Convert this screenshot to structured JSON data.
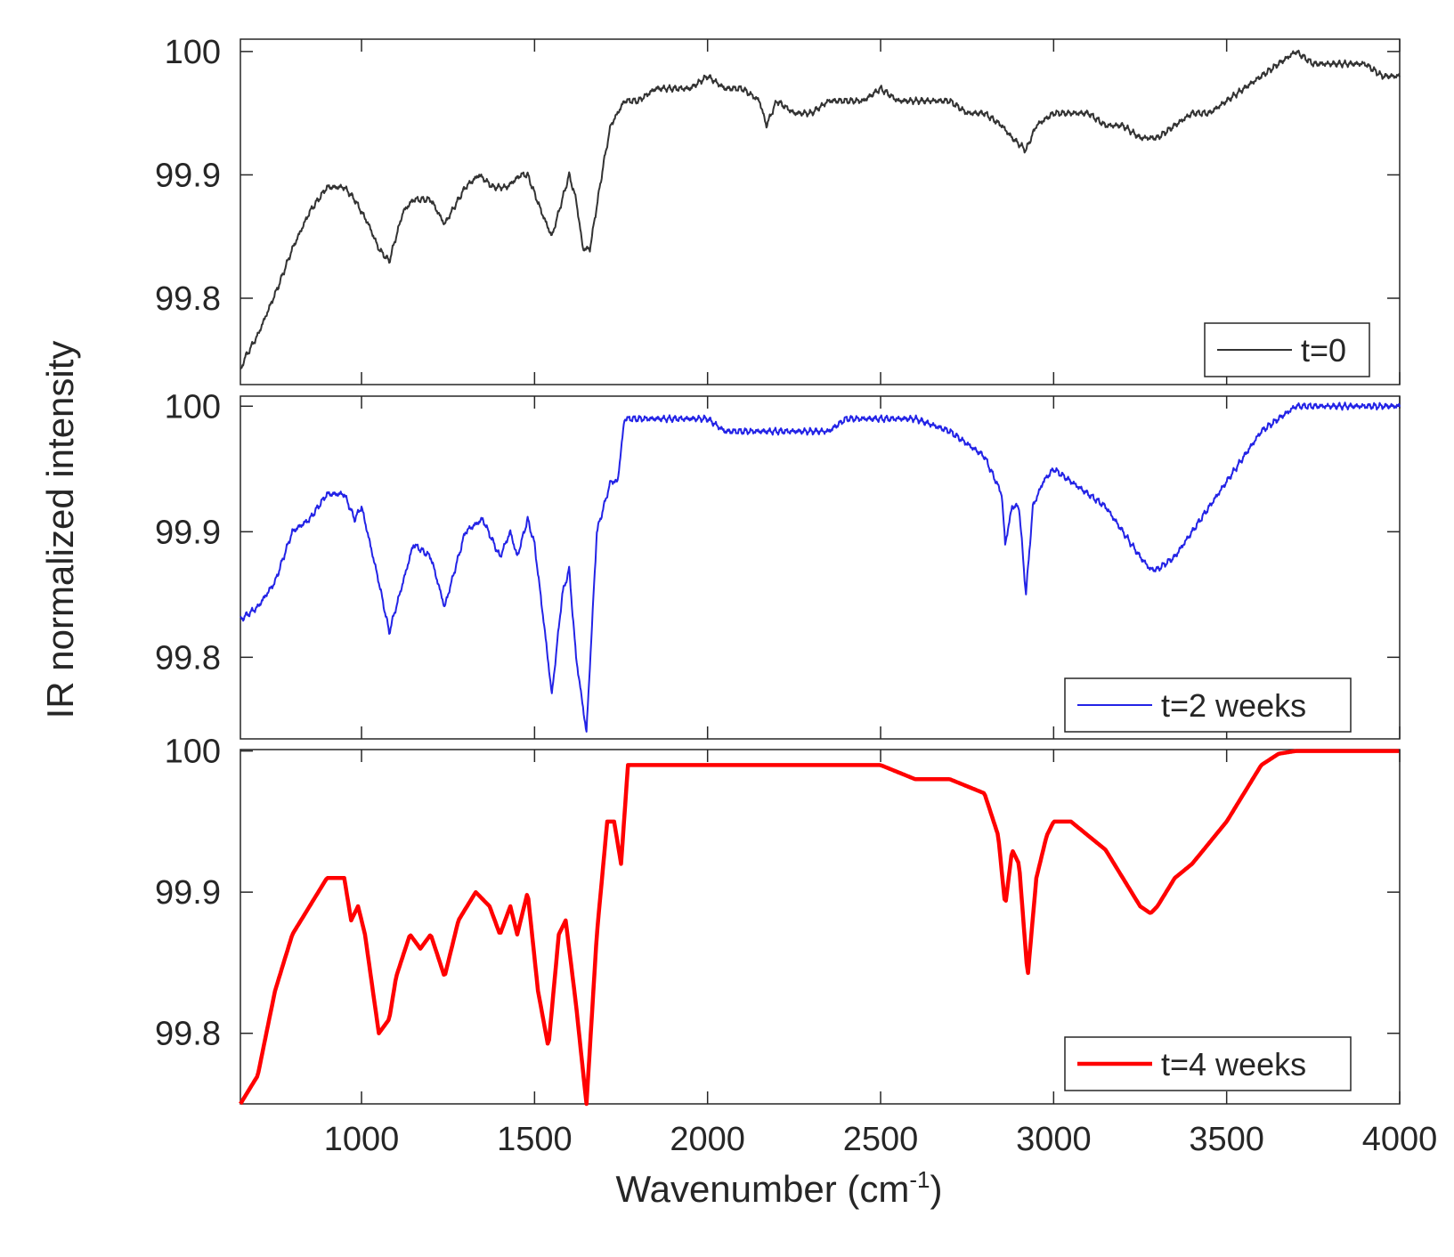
{
  "figure": {
    "ylabel": "IR normalized intensity",
    "xlabel_main": "Wavenumber (cm",
    "xlabel_sup": "-1",
    "xlabel_close": ")",
    "xticks": [
      "1000",
      "1500",
      "2000",
      "2500",
      "3000",
      "3500",
      "4000"
    ]
  },
  "chart_data": [
    {
      "type": "line",
      "legend": "t=0",
      "legend_position": "bottom-right",
      "color": "#333333",
      "xlim": [
        650,
        4000
      ],
      "ylim": [
        99.73,
        100.01
      ],
      "ytick_labels": [
        "100",
        "99.9",
        "99.8"
      ],
      "grid": false,
      "series": [
        {
          "name": "t=0",
          "noise": 0.003,
          "x": [
            650,
            660,
            700,
            760,
            800,
            850,
            900,
            950,
            980,
            1020,
            1050,
            1080,
            1120,
            1150,
            1200,
            1240,
            1280,
            1300,
            1340,
            1380,
            1420,
            1460,
            1480,
            1520,
            1550,
            1570,
            1600,
            1620,
            1640,
            1660,
            1700,
            1720,
            1740,
            1760,
            1800,
            1850,
            1900,
            1950,
            2000,
            2050,
            2100,
            2150,
            2170,
            2200,
            2250,
            2300,
            2350,
            2400,
            2450,
            2500,
            2550,
            2600,
            2650,
            2700,
            2750,
            2800,
            2850,
            2880,
            2920,
            2950,
            3000,
            3050,
            3100,
            3150,
            3200,
            3250,
            3300,
            3350,
            3400,
            3450,
            3500,
            3550,
            3600,
            3650,
            3700,
            3750,
            3800,
            3850,
            3900,
            3950,
            4000
          ],
          "y": [
            99.74,
            99.75,
            99.77,
            99.81,
            99.84,
            99.87,
            99.89,
            99.89,
            99.88,
            99.86,
            99.84,
            99.83,
            99.87,
            99.88,
            99.88,
            99.86,
            99.88,
            99.89,
            99.9,
            99.89,
            99.89,
            99.9,
            99.9,
            99.87,
            99.85,
            99.87,
            99.9,
            99.88,
            99.84,
            99.84,
            99.91,
            99.94,
            99.95,
            99.96,
            99.96,
            99.97,
            99.97,
            99.97,
            99.98,
            99.97,
            99.97,
            99.96,
            99.94,
            99.96,
            99.95,
            99.95,
            99.96,
            99.96,
            99.96,
            99.97,
            99.96,
            99.96,
            99.96,
            99.96,
            99.95,
            99.95,
            99.94,
            99.93,
            99.92,
            99.94,
            99.95,
            99.95,
            99.95,
            99.94,
            99.94,
            99.93,
            99.93,
            99.94,
            99.95,
            99.95,
            99.96,
            99.97,
            99.98,
            99.99,
            100.0,
            99.99,
            99.99,
            99.99,
            99.99,
            99.98,
            99.98
          ]
        }
      ]
    },
    {
      "type": "line",
      "legend": "t=2 weeks",
      "legend_position": "bottom-right",
      "color": "#2323e6",
      "xlim": [
        650,
        4000
      ],
      "ylim": [
        99.735,
        100.008
      ],
      "ytick_labels": [
        "100",
        "99.9",
        "99.8"
      ],
      "grid": false,
      "series": [
        {
          "name": "t=2 weeks",
          "noise": 0.003,
          "x": [
            650,
            700,
            750,
            800,
            850,
            900,
            950,
            980,
            1000,
            1050,
            1080,
            1100,
            1150,
            1200,
            1240,
            1280,
            1300,
            1350,
            1400,
            1430,
            1450,
            1480,
            1500,
            1530,
            1550,
            1580,
            1600,
            1620,
            1650,
            1680,
            1720,
            1740,
            1760,
            1800,
            1850,
            1900,
            1950,
            2000,
            2050,
            2100,
            2150,
            2200,
            2250,
            2300,
            2350,
            2400,
            2500,
            2600,
            2700,
            2800,
            2850,
            2860,
            2880,
            2900,
            2920,
            2940,
            2970,
            3000,
            3050,
            3100,
            3150,
            3200,
            3250,
            3280,
            3300,
            3350,
            3400,
            3450,
            3500,
            3550,
            3600,
            3650,
            3700,
            3750,
            3800,
            3850,
            3900,
            3950,
            4000
          ],
          "y": [
            99.83,
            99.84,
            99.86,
            99.9,
            99.91,
            99.93,
            99.93,
            99.91,
            99.92,
            99.86,
            99.82,
            99.84,
            99.89,
            99.88,
            99.84,
            99.88,
            99.9,
            99.91,
            99.88,
            99.9,
            99.88,
            99.91,
            99.89,
            99.82,
            99.77,
            99.85,
            99.87,
            99.8,
            99.74,
            99.9,
            99.94,
            99.94,
            99.99,
            99.99,
            99.99,
            99.99,
            99.99,
            99.99,
            99.98,
            99.98,
            99.98,
            99.98,
            99.98,
            99.98,
            99.98,
            99.99,
            99.99,
            99.99,
            99.98,
            99.96,
            99.93,
            99.89,
            99.92,
            99.92,
            99.85,
            99.92,
            99.94,
            99.95,
            99.94,
            99.93,
            99.92,
            99.9,
            99.88,
            99.87,
            99.87,
            99.88,
            99.9,
            99.92,
            99.94,
            99.96,
            99.98,
            99.99,
            100.0,
            100.0,
            100.0,
            100.0,
            100.0,
            100.0,
            100.0
          ]
        }
      ]
    },
    {
      "type": "line",
      "legend": "t=4 weeks",
      "legend_position": "bottom-right",
      "color": "#ff0000",
      "xlim": [
        650,
        4000
      ],
      "ylim": [
        99.75,
        100.001
      ],
      "ytick_labels": [
        "100",
        "99.9",
        "99.8"
      ],
      "grid": false,
      "series": [
        {
          "name": "t=4 weeks",
          "noise": 0,
          "x": [
            650,
            700,
            750,
            800,
            850,
            900,
            950,
            970,
            990,
            1010,
            1050,
            1080,
            1100,
            1140,
            1170,
            1200,
            1240,
            1280,
            1330,
            1370,
            1400,
            1430,
            1450,
            1480,
            1510,
            1540,
            1570,
            1590,
            1620,
            1650,
            1680,
            1710,
            1730,
            1750,
            1770,
            1800,
            1900,
            2000,
            2100,
            2200,
            2300,
            2400,
            2500,
            2600,
            2700,
            2800,
            2840,
            2860,
            2880,
            2900,
            2925,
            2950,
            2980,
            3000,
            3050,
            3100,
            3150,
            3200,
            3250,
            3280,
            3300,
            3350,
            3400,
            3450,
            3500,
            3550,
            3600,
            3650,
            3700,
            3750,
            4000
          ],
          "y": [
            99.75,
            99.77,
            99.83,
            99.87,
            99.89,
            99.91,
            99.91,
            99.88,
            99.89,
            99.87,
            99.8,
            99.81,
            99.84,
            99.87,
            99.86,
            99.87,
            99.84,
            99.88,
            99.9,
            99.89,
            99.87,
            99.89,
            99.87,
            99.9,
            99.83,
            99.79,
            99.87,
            99.88,
            99.82,
            99.75,
            99.87,
            99.95,
            99.95,
            99.92,
            99.99,
            99.99,
            99.99,
            99.99,
            99.99,
            99.99,
            99.99,
            99.99,
            99.99,
            99.98,
            99.98,
            99.97,
            99.94,
            99.89,
            99.93,
            99.92,
            99.84,
            99.91,
            99.94,
            99.95,
            99.95,
            99.94,
            99.93,
            99.91,
            99.89,
            99.885,
            99.89,
            99.91,
            99.92,
            99.935,
            99.95,
            99.97,
            99.99,
            99.998,
            100.0,
            100.0,
            100.0
          ]
        }
      ]
    }
  ]
}
